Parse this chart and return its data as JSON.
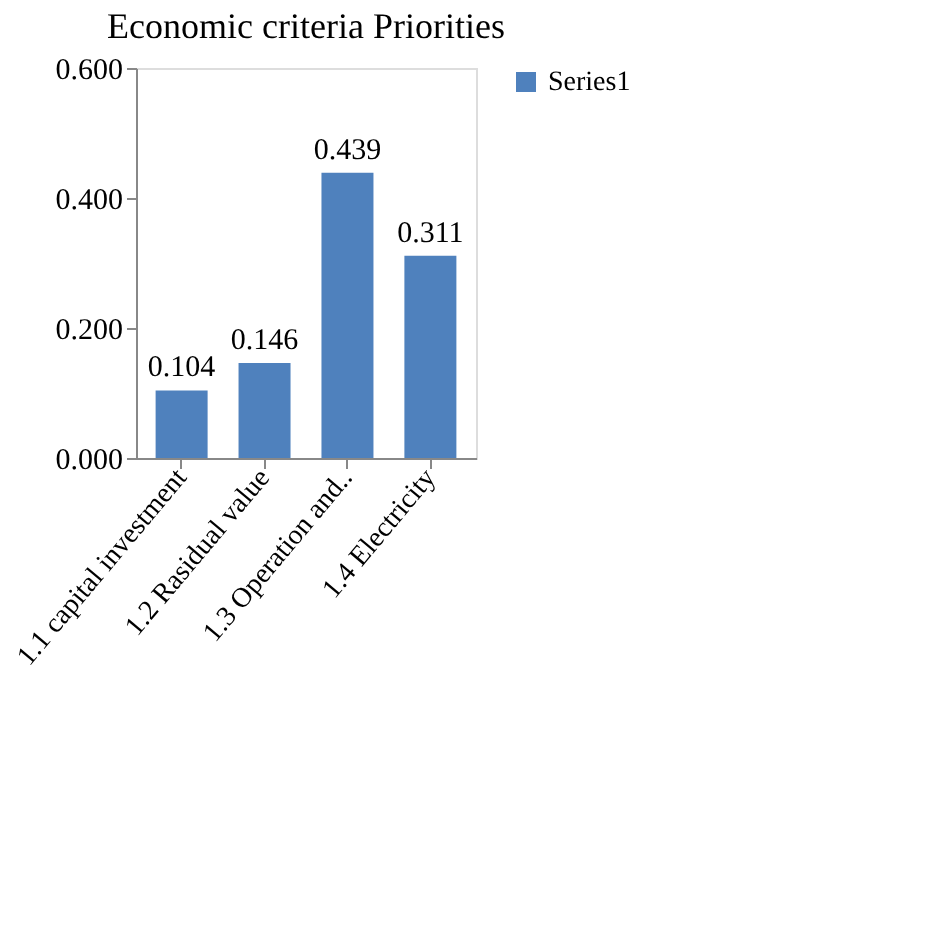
{
  "chart_data": {
    "type": "bar",
    "title": "Economic criteria Priorities",
    "categories": [
      "1.1 capital investment",
      "1.2 Rasidual value",
      "1.3 Operation and..",
      "1.4 Electricity"
    ],
    "series": [
      {
        "name": "Series1",
        "color": "#4f81bd",
        "values": [
          0.104,
          0.146,
          0.439,
          0.311
        ]
      }
    ],
    "ylim": [
      0,
      0.6
    ],
    "yticks": [
      {
        "value": 0,
        "label": "0.000"
      },
      {
        "value": 0.2,
        "label": "0.200"
      },
      {
        "value": 0.4,
        "label": "0.400"
      },
      {
        "value": 0.6,
        "label": "0.600"
      }
    ],
    "data_labels": true,
    "legend": "right",
    "grid": false
  }
}
